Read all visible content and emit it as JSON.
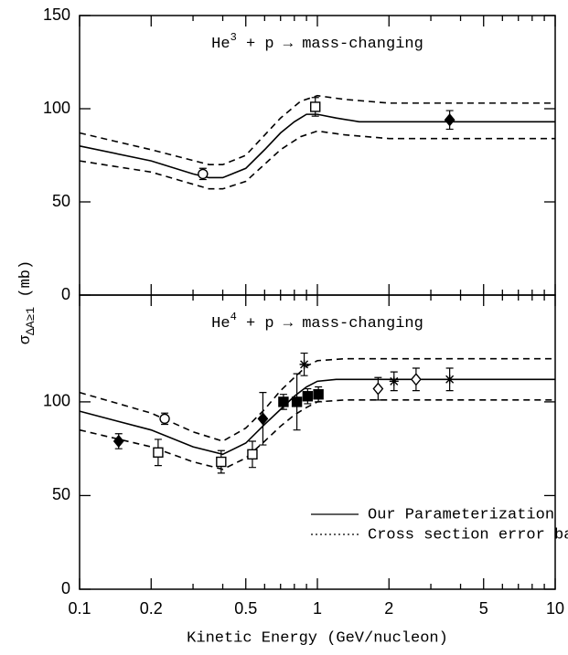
{
  "chart_data": [
    {
      "type": "line",
      "xscale": "log",
      "xlim": [
        0.1,
        10
      ],
      "xticks": [
        0.1,
        0.2,
        0.5,
        1,
        2,
        5,
        10
      ],
      "xminorticks": [
        0.3,
        0.4,
        0.6,
        0.7,
        0.8,
        0.9,
        3,
        4,
        6,
        7,
        8,
        9
      ],
      "show_xticklabels": false,
      "ylim": [
        0,
        150
      ],
      "yticks": [
        0,
        50,
        100,
        150
      ],
      "ylabel": {
        "symbol": "σ",
        "subscript": "ΔA≥1",
        "unit": " (mb)"
      },
      "annotation": {
        "base": "He",
        "superscript": "3",
        "rest": " + p → mass-changing"
      },
      "series": [
        {
          "style": "solid",
          "color": "#000000",
          "x": [
            0.1,
            0.2,
            0.3,
            0.35,
            0.4,
            0.5,
            0.6,
            0.7,
            0.8,
            0.9,
            1.0,
            1.2,
            1.5,
            2,
            5,
            10
          ],
          "values": [
            80,
            72,
            65,
            63,
            63,
            68,
            78,
            87,
            93,
            97,
            97,
            95,
            93,
            93,
            93,
            93
          ]
        },
        {
          "style": "dashed",
          "color": "#000000",
          "x": [
            0.1,
            0.2,
            0.35,
            0.4,
            0.5,
            0.7,
            0.85,
            1.0,
            1.3,
            2,
            10
          ],
          "values": [
            87,
            78,
            70,
            70,
            75,
            95,
            104,
            107,
            105,
            103,
            103
          ]
        },
        {
          "style": "dashed",
          "color": "#000000",
          "x": [
            0.1,
            0.2,
            0.35,
            0.4,
            0.5,
            0.7,
            0.85,
            1.0,
            1.3,
            2,
            10
          ],
          "values": [
            72,
            66,
            57,
            57,
            61,
            78,
            85,
            88,
            86,
            84,
            84
          ]
        }
      ],
      "points": [
        {
          "marker": "circle-open",
          "x": [
            0.33
          ],
          "values": [
            65
          ],
          "errors": [
            3
          ]
        },
        {
          "marker": "square-open",
          "x": [
            0.98
          ],
          "values": [
            101
          ],
          "errors": [
            5
          ]
        },
        {
          "marker": "diamond-filled",
          "x": [
            3.6
          ],
          "values": [
            94
          ],
          "errors": [
            5
          ]
        }
      ]
    },
    {
      "type": "line",
      "xscale": "log",
      "xlim": [
        0.1,
        10
      ],
      "xticks": [
        0.1,
        0.2,
        0.5,
        1,
        2,
        5,
        10
      ],
      "xminorticks": [
        0.3,
        0.4,
        0.6,
        0.7,
        0.8,
        0.9,
        3,
        4,
        6,
        7,
        8,
        9
      ],
      "show_xticklabels": true,
      "xlabel": "Kinetic Energy (GeV/nucleon)",
      "ylim": [
        0,
        157
      ],
      "yticks": [
        0,
        50,
        100
      ],
      "annotation": {
        "base": "He",
        "superscript": "4",
        "rest": " + p → mass-changing"
      },
      "legend": "lower right",
      "series": [
        {
          "name": "Our Parameterization",
          "style": "solid",
          "legend_style": "solid",
          "color": "#000000",
          "x": [
            0.1,
            0.2,
            0.3,
            0.4,
            0.5,
            0.6,
            0.7,
            0.8,
            0.9,
            1.0,
            1.2,
            2,
            10
          ],
          "values": [
            95,
            85,
            76,
            72,
            78,
            88,
            96,
            103,
            108,
            111,
            112,
            112,
            112
          ]
        },
        {
          "name": "Cross section error band",
          "style": "dashed",
          "legend_style": "dotted",
          "color": "#000000",
          "x": [
            0.1,
            0.2,
            0.3,
            0.4,
            0.5,
            0.6,
            0.7,
            0.8,
            0.9,
            1.0,
            1.3,
            10
          ],
          "values": [
            105,
            94,
            84,
            79,
            86,
            96,
            106,
            113,
            119,
            122,
            123,
            123
          ]
        },
        {
          "style": "dashed",
          "color": "#000000",
          "x": [
            0.1,
            0.2,
            0.3,
            0.4,
            0.5,
            0.6,
            0.7,
            0.8,
            0.9,
            1.0,
            1.3,
            10
          ],
          "values": [
            85,
            76,
            68,
            64,
            70,
            79,
            87,
            93,
            97,
            100,
            101,
            101
          ]
        }
      ],
      "points": [
        {
          "marker": "diamond-filled",
          "x": [
            0.146,
            0.59
          ],
          "values": [
            79,
            91
          ],
          "errors": [
            4,
            14
          ]
        },
        {
          "marker": "circle-open",
          "x": [
            0.228
          ],
          "values": [
            91
          ],
          "errors": [
            3
          ]
        },
        {
          "marker": "square-open",
          "x": [
            0.214,
            0.394,
            0.533
          ],
          "values": [
            73,
            68,
            72
          ],
          "errors": [
            7,
            6,
            7
          ]
        },
        {
          "marker": "square-filled",
          "x": [
            0.72,
            0.82,
            0.91,
            1.01
          ],
          "values": [
            100,
            100,
            103,
            104
          ],
          "errors": [
            4,
            15,
            4,
            4
          ]
        },
        {
          "marker": "asterisk",
          "x": [
            0.88,
            2.1,
            3.6
          ],
          "values": [
            120,
            111,
            112
          ],
          "errors": [
            6,
            5,
            6
          ]
        },
        {
          "marker": "diamond-open",
          "x": [
            1.8,
            2.6
          ],
          "values": [
            107,
            112
          ],
          "errors": [
            6,
            6
          ]
        }
      ]
    }
  ]
}
